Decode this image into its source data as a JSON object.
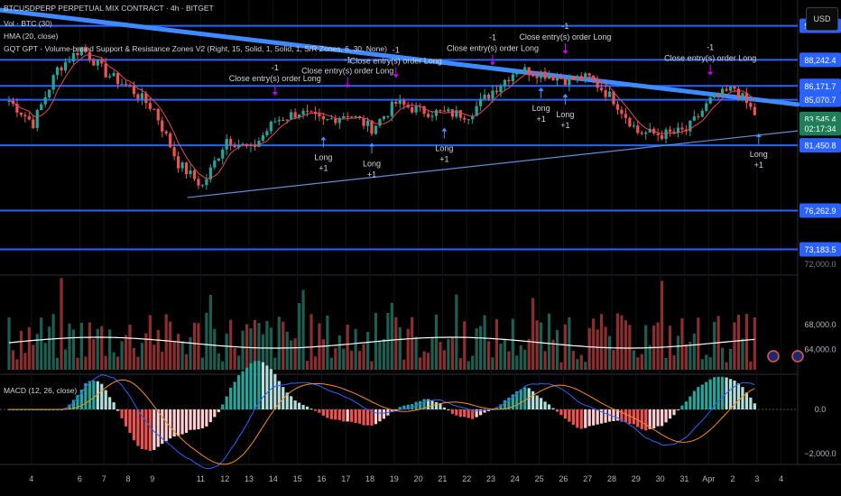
{
  "header": {
    "symbol": "BTCUSDPERP PERPETUAL MIX CONTRACT · 4h · BITGET",
    "vol": "Vol · BTC (30)",
    "hma": "HMA (20, close)",
    "zones": "GQT GPT - Volume-based Support & Resistance Zones V2 (Right, 15, Solid, 1, Solid, 1, S/R Zones, 6, 30, None)",
    "macd": "MACD (12, 26, close)",
    "currency_button": "USD"
  },
  "price_labels": [
    {
      "text": "90,950.2",
      "value": 90950.2,
      "color": "#2962ff"
    },
    {
      "text": "88,242.4",
      "value": 88242.4,
      "color": "#2962ff"
    },
    {
      "text": "86,171.7",
      "value": 86171.7,
      "color": "#2962ff"
    },
    {
      "text": "85,070.7",
      "value": 85070.7,
      "color": "#2962ff"
    },
    {
      "text": "83,545.4",
      "value": 83545.4,
      "color": "#1e7e5a"
    },
    {
      "text": "02:17:34",
      "value": 82800,
      "color": "#1e7e5a"
    },
    {
      "text": "81,450.8",
      "value": 81450.8,
      "color": "#2962ff"
    },
    {
      "text": "76,262.9",
      "value": 76262.9,
      "color": "#2962ff"
    },
    {
      "text": "73,183.5",
      "value": 73183.5,
      "color": "#2962ff"
    }
  ],
  "price_axis_plain": {
    "text": "72,000.0",
    "value": 72000
  },
  "volume_axis": [
    {
      "text": "68,000.0",
      "value": 68000
    },
    {
      "text": "64,000.0",
      "value": 64000
    }
  ],
  "macd_axis": [
    {
      "text": "0.0",
      "value": 0
    },
    {
      "text": "−2,000.0",
      "value": -2000
    }
  ],
  "x_axis_labels": [
    "4",
    "6",
    "7",
    "8",
    "9",
    "11",
    "12",
    "13",
    "14",
    "15",
    "16",
    "17",
    "18",
    "19",
    "20",
    "21",
    "22",
    "23",
    "24",
    "25",
    "26",
    "27",
    "28",
    "29",
    "30",
    "31",
    "Apr",
    "2",
    "3",
    "4"
  ],
  "trade_annotations": {
    "close_label": "Close entry(s) order Long",
    "exit_marker": "-1",
    "long_label": "Long",
    "long_size": "+1"
  },
  "chart_data": [
    {
      "type": "candlestick",
      "title": "BTCUSDPERP PERPETUAL MIX CONTRACT · 4h · BITGET",
      "ylim": [
        71500,
        93000
      ],
      "x_range": [
        "Mar 3",
        "Apr 4"
      ],
      "sr_zone_levels": [
        90950.2,
        88242.4,
        86171.7,
        85070.7,
        81450.8,
        76262.9,
        73183.5
      ],
      "trendline_upper": {
        "from": [
          "Mar 3",
          92200
        ],
        "to": [
          "Apr 4",
          84700
        ]
      },
      "trendline_lower": {
        "from": [
          "Mar 10",
          77300
        ],
        "to": [
          "Apr 4",
          82600
        ]
      },
      "last_price": 83545.4,
      "close_series": [
        {
          "x": "Mar 3",
          "y": 85000
        },
        {
          "x": "Mar 4",
          "y": 83200
        },
        {
          "x": "Mar 5",
          "y": 87500
        },
        {
          "x": "Mar 6",
          "y": 89200
        },
        {
          "x": "Mar 7",
          "y": 87200
        },
        {
          "x": "Mar 8",
          "y": 86000
        },
        {
          "x": "Mar 9",
          "y": 84300
        },
        {
          "x": "Mar 10",
          "y": 80000
        },
        {
          "x": "Mar 11",
          "y": 78200
        },
        {
          "x": "Mar 12",
          "y": 82000
        },
        {
          "x": "Mar 13",
          "y": 81100
        },
        {
          "x": "Mar 14",
          "y": 83400
        },
        {
          "x": "Mar 15",
          "y": 84100
        },
        {
          "x": "Mar 16",
          "y": 83300
        },
        {
          "x": "Mar 17",
          "y": 84000
        },
        {
          "x": "Mar 18",
          "y": 82800
        },
        {
          "x": "Mar 19",
          "y": 84800
        },
        {
          "x": "Mar 20",
          "y": 84200
        },
        {
          "x": "Mar 21",
          "y": 84000
        },
        {
          "x": "Mar 22",
          "y": 83900
        },
        {
          "x": "Mar 23",
          "y": 85800
        },
        {
          "x": "Mar 24",
          "y": 87500
        },
        {
          "x": "Mar 25",
          "y": 87200
        },
        {
          "x": "Mar 26",
          "y": 86700
        },
        {
          "x": "Mar 27",
          "y": 86800
        },
        {
          "x": "Mar 28",
          "y": 85100
        },
        {
          "x": "Mar 29",
          "y": 82500
        },
        {
          "x": "Mar 30",
          "y": 82300
        },
        {
          "x": "Mar 31",
          "y": 82600
        },
        {
          "x": "Apr 1",
          "y": 85000
        },
        {
          "x": "Apr 2",
          "y": 86000
        },
        {
          "x": "Apr 3",
          "y": 83545
        }
      ],
      "exit_signals_x": [
        "Mar 14",
        "Mar 17",
        "Mar 19",
        "Mar 23",
        "Mar 26",
        "Apr 1"
      ],
      "long_signals_x": [
        "Mar 16",
        "Mar 18",
        "Mar 21",
        "Mar 25",
        "Mar 26",
        "Apr 3"
      ]
    },
    {
      "type": "bar",
      "title": "Vol · BTC (30)",
      "ylim": [
        60000,
        76000
      ],
      "colors": {
        "up": "#1d5e50",
        "down": "#8a2e2e",
        "ma": "#ffffff"
      }
    },
    {
      "type": "line",
      "title": "MACD (12, 26, close)",
      "ylim": [
        -2500,
        1600
      ],
      "series": [
        {
          "name": "MACD",
          "color": "#2962ff"
        },
        {
          "name": "Signal",
          "color": "#ff8c1a"
        }
      ],
      "histogram_colors": {
        "up": "#26a69a",
        "down": "#ef5350"
      }
    }
  ]
}
